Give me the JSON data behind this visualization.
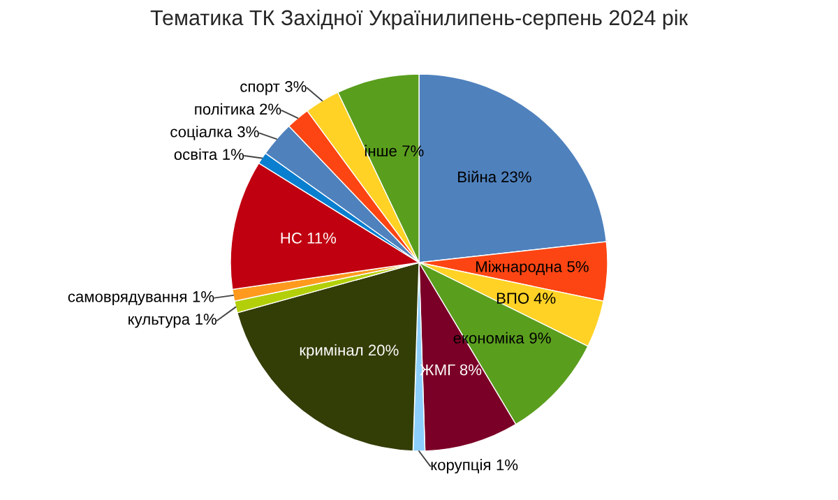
{
  "chart_data": {
    "type": "pie",
    "title": "Тематика ТК Західної Українилипень-серпень 2024 рік",
    "categories": [
      "Війна",
      "Міжнародна",
      "ВПО",
      "економіка",
      "ЖМГ",
      "корупція",
      "кримінал",
      "культура",
      "самоврядування",
      "НС",
      "освіта",
      "соціалка",
      "політика",
      "спорт",
      "інше"
    ],
    "values": [
      23,
      5,
      4,
      9,
      8,
      1,
      20,
      1,
      1,
      11,
      1,
      3,
      2,
      3,
      7
    ],
    "colors": [
      "#4f81bd",
      "#fc4513",
      "#ffd225",
      "#5a9e1e",
      "#7b0027",
      "#8ccfff",
      "#333d06",
      "#b3cf0a",
      "#ff9a1e",
      "#c00010",
      "#0a7fd0",
      "#4f81bd",
      "#fc4513",
      "#ffd225",
      "#5a9e1e"
    ],
    "value_labels": [
      "23%",
      "5%",
      "4%",
      "9%",
      "8%",
      "1%",
      "20%",
      "1%",
      "1%",
      "11%",
      "1%",
      "3%",
      "2%",
      "3%",
      "7%"
    ]
  }
}
